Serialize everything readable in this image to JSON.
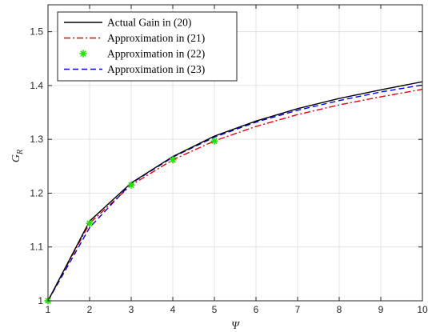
{
  "chart_data": {
    "type": "line",
    "xlabel": "Ψ",
    "ylabel": "G",
    "ylabel_sub": "R",
    "xlim": [
      1,
      10
    ],
    "ylim": [
      1,
      1.55
    ],
    "xticks": [
      1,
      2,
      3,
      4,
      5,
      6,
      7,
      8,
      9,
      10
    ],
    "yticks": [
      1,
      1.1,
      1.2,
      1.3,
      1.4,
      1.5
    ],
    "ytick_labels": [
      "1",
      "1.1",
      "1.2",
      "1.3",
      "1.4",
      "1.5"
    ],
    "grid": true,
    "legend_position": "top-left",
    "series": [
      {
        "name": "Actual Gain in (20)",
        "style": "solid",
        "color": "#000000",
        "x": [
          1,
          2,
          3,
          4,
          5,
          6,
          7,
          8,
          9,
          10
        ],
        "y": [
          1.0,
          1.148,
          1.219,
          1.268,
          1.306,
          1.334,
          1.357,
          1.376,
          1.392,
          1.407
        ]
      },
      {
        "name": "Approximation in (21)",
        "style": "dashdot",
        "color": "#e8000b",
        "x": [
          1,
          2,
          3,
          4,
          5,
          6,
          7,
          8,
          9,
          10
        ],
        "y": [
          1.0,
          1.144,
          1.215,
          1.262,
          1.297,
          1.324,
          1.346,
          1.364,
          1.379,
          1.393
        ]
      },
      {
        "name": "Approximation in (22)",
        "style": "marker",
        "marker": "asterisk",
        "color": "#22e000",
        "x": [
          1,
          2,
          3,
          4,
          5
        ],
        "y": [
          1.0,
          1.144,
          1.215,
          1.262,
          1.297
        ]
      },
      {
        "name": "Approximation in (23)",
        "style": "dashed",
        "color": "#0000e8",
        "x": [
          1,
          2,
          3,
          4,
          5,
          6,
          7,
          8,
          9,
          10
        ],
        "y": [
          1.0,
          1.136,
          1.218,
          1.267,
          1.304,
          1.332,
          1.354,
          1.372,
          1.388,
          1.401
        ]
      }
    ]
  }
}
